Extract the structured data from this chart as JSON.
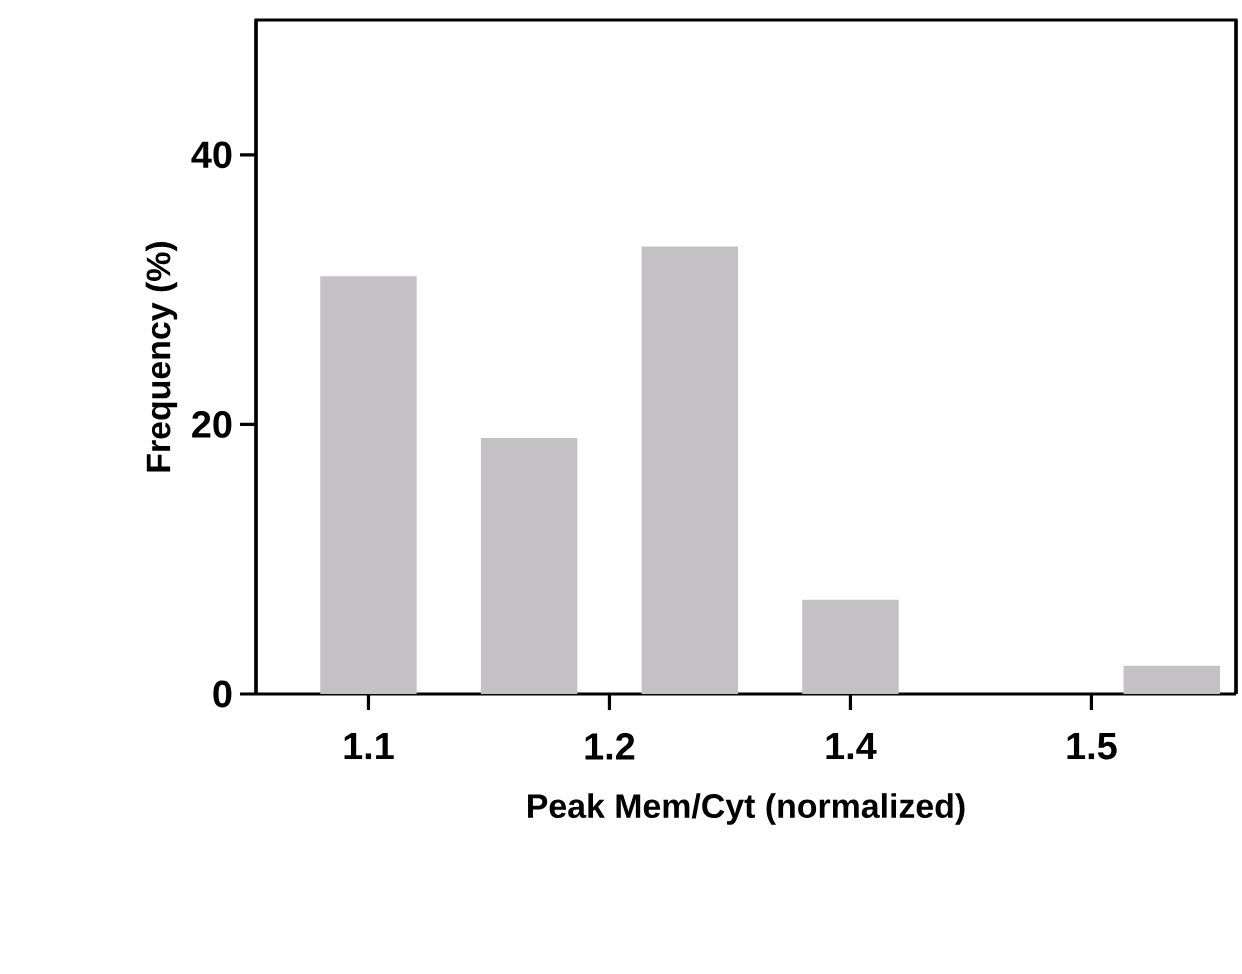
{
  "chart_data": {
    "type": "bar",
    "xlabel": "Peak Mem/Cyt (normalized)",
    "ylabel": "Frequency (%)",
    "x": [
      1.1,
      1.2,
      1.3,
      1.4,
      1.5,
      1.6
    ],
    "values": [
      31,
      19,
      33.2,
      7,
      0,
      2.1
    ],
    "color": "#c3c1c4",
    "xlim": [
      1.03,
      1.64
    ],
    "ylim": [
      0,
      50
    ],
    "xticks": [
      1.1,
      {
        "value": 1.25,
        "label": "1.2"
      },
      1.4,
      {
        "value": 1.55,
        "label": "1.5"
      }
    ],
    "yticks": [
      0,
      20,
      40
    ]
  }
}
